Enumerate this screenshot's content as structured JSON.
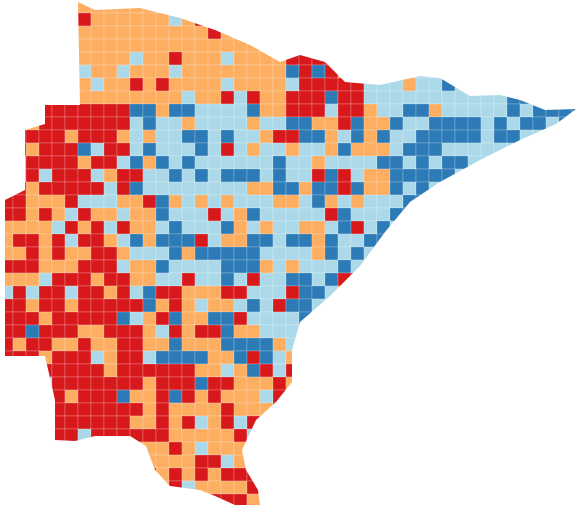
{
  "palette": [
    "#d7191c",
    "#fdae61",
    "#abd9e9",
    "#2c7bb6"
  ]
}
